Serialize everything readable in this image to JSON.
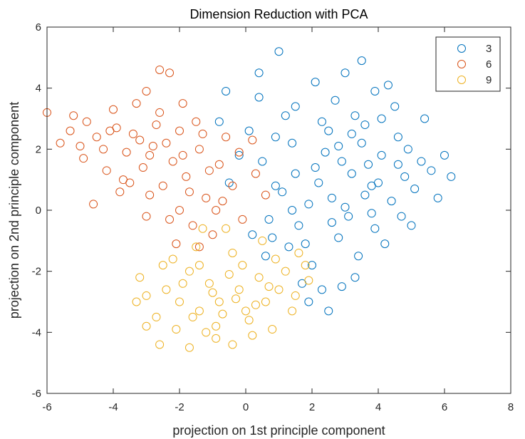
{
  "chart_data": {
    "type": "scatter",
    "title": "Dimension Reduction with PCA",
    "xlabel": "projection on 1st principle component",
    "ylabel": "projection on 2nd principle component",
    "xlim": [
      -6,
      8
    ],
    "ylim": [
      -6,
      6
    ],
    "xticks": [
      -6,
      -4,
      -2,
      0,
      2,
      4,
      6,
      8
    ],
    "yticks": [
      -6,
      -4,
      -2,
      0,
      2,
      4,
      6
    ],
    "grid": false,
    "legend_position": "top-right",
    "marker": "open-circle",
    "series": [
      {
        "name": "3",
        "color": "#0072BD",
        "points": [
          [
            3.2,
            1.2
          ],
          [
            3.8,
            0.8
          ],
          [
            2.6,
            0.4
          ],
          [
            4.1,
            1.8
          ],
          [
            3.5,
            2.2
          ],
          [
            2.9,
            1.6
          ],
          [
            4.4,
            0.3
          ],
          [
            3.1,
            -0.2
          ],
          [
            2.2,
            0.9
          ],
          [
            4.8,
            1.1
          ],
          [
            3.6,
            2.8
          ],
          [
            2.4,
            1.9
          ],
          [
            3.9,
            -0.6
          ],
          [
            4.6,
            2.4
          ],
          [
            2.8,
            -0.9
          ],
          [
            1.9,
            0.2
          ],
          [
            3.3,
            3.1
          ],
          [
            5.1,
            0.7
          ],
          [
            4.2,
            -1.1
          ],
          [
            2.1,
            1.4
          ],
          [
            1.6,
            -0.5
          ],
          [
            3.0,
            0.1
          ],
          [
            4.9,
            2.0
          ],
          [
            3.7,
            1.5
          ],
          [
            2.5,
            2.6
          ],
          [
            5.3,
            1.6
          ],
          [
            1.3,
            -1.2
          ],
          [
            2.0,
            -1.8
          ],
          [
            3.4,
            -1.5
          ],
          [
            4.5,
            3.4
          ],
          [
            2.7,
            3.6
          ],
          [
            1.1,
            0.6
          ],
          [
            0.8,
            -0.9
          ],
          [
            1.5,
            1.2
          ],
          [
            3.9,
            3.9
          ],
          [
            4.3,
            4.1
          ],
          [
            5.6,
            1.3
          ],
          [
            6.0,
            1.8
          ],
          [
            6.2,
            1.1
          ],
          [
            5.8,
            0.4
          ],
          [
            1.7,
            -2.4
          ],
          [
            2.3,
            -2.6
          ],
          [
            2.5,
            -3.3
          ],
          [
            1.9,
            -3.0
          ],
          [
            0.6,
            -1.5
          ],
          [
            0.2,
            -0.8
          ],
          [
            0.5,
            1.6
          ],
          [
            0.9,
            2.4
          ],
          [
            -0.6,
            3.9
          ],
          [
            0.4,
            3.7
          ],
          [
            1.2,
            3.1
          ],
          [
            2.1,
            4.2
          ],
          [
            3.0,
            4.5
          ],
          [
            3.5,
            4.9
          ],
          [
            1.0,
            5.2
          ],
          [
            0.4,
            4.5
          ],
          [
            -0.8,
            2.9
          ],
          [
            -0.2,
            1.8
          ],
          [
            -0.5,
            0.9
          ],
          [
            0.1,
            2.6
          ],
          [
            1.4,
            2.2
          ],
          [
            2.8,
            2.1
          ],
          [
            3.6,
            0.5
          ],
          [
            4.0,
            0.9
          ],
          [
            4.7,
            -0.2
          ],
          [
            5.0,
            -0.5
          ],
          [
            3.3,
            -2.2
          ],
          [
            2.9,
            -2.5
          ],
          [
            1.8,
            -1.1
          ],
          [
            0.7,
            -0.3
          ],
          [
            5.4,
            3.0
          ],
          [
            4.1,
            3.0
          ],
          [
            3.2,
            2.5
          ],
          [
            2.3,
            2.9
          ],
          [
            1.5,
            3.4
          ],
          [
            4.6,
            1.5
          ],
          [
            3.8,
            -0.1
          ],
          [
            2.6,
            -0.4
          ],
          [
            1.4,
            0.0
          ],
          [
            0.9,
            0.8
          ]
        ]
      },
      {
        "name": "6",
        "color": "#D95319",
        "points": [
          [
            -2.8,
            2.1
          ],
          [
            -2.2,
            1.6
          ],
          [
            -3.4,
            2.5
          ],
          [
            -1.8,
            1.1
          ],
          [
            -2.5,
            0.8
          ],
          [
            -3.9,
            2.7
          ],
          [
            -4.5,
            2.4
          ],
          [
            -3.1,
            1.4
          ],
          [
            -1.4,
            2.0
          ],
          [
            -2.0,
            2.6
          ],
          [
            -3.6,
            1.9
          ],
          [
            -4.8,
            2.9
          ],
          [
            -5.3,
            2.6
          ],
          [
            -4.2,
            1.3
          ],
          [
            -2.9,
            0.5
          ],
          [
            -1.2,
            0.4
          ],
          [
            -0.8,
            1.5
          ],
          [
            -1.5,
            2.9
          ],
          [
            -2.6,
            3.2
          ],
          [
            -3.3,
            3.5
          ],
          [
            -4.0,
            3.3
          ],
          [
            -5.0,
            2.1
          ],
          [
            -5.6,
            2.2
          ],
          [
            -6.0,
            3.2
          ],
          [
            -4.6,
            0.2
          ],
          [
            -3.8,
            0.6
          ],
          [
            -2.3,
            -0.3
          ],
          [
            -1.6,
            -0.5
          ],
          [
            -0.9,
            0.0
          ],
          [
            -0.4,
            0.8
          ],
          [
            -0.2,
            1.9
          ],
          [
            0.3,
            1.2
          ],
          [
            0.6,
            0.5
          ],
          [
            -0.1,
            -0.3
          ],
          [
            -1.0,
            -0.8
          ],
          [
            -2.1,
            -1.1
          ],
          [
            -2.6,
            4.6
          ],
          [
            -2.3,
            4.5
          ],
          [
            -3.0,
            3.9
          ],
          [
            -1.9,
            3.5
          ],
          [
            -3.7,
            1.0
          ],
          [
            -2.7,
            2.8
          ],
          [
            -1.9,
            1.8
          ],
          [
            -1.1,
            1.3
          ],
          [
            -0.6,
            2.4
          ],
          [
            -3.2,
            2.3
          ],
          [
            -4.3,
            2.0
          ],
          [
            -2.4,
            2.2
          ],
          [
            -1.7,
            0.6
          ],
          [
            -2.9,
            1.8
          ],
          [
            -3.5,
            0.9
          ],
          [
            -4.1,
            2.6
          ],
          [
            -1.3,
            2.5
          ],
          [
            -0.7,
            0.3
          ],
          [
            0.2,
            2.3
          ],
          [
            -2.0,
            0.0
          ],
          [
            -3.0,
            -0.2
          ],
          [
            -1.4,
            -1.2
          ],
          [
            -4.9,
            1.7
          ],
          [
            -5.2,
            3.1
          ]
        ]
      },
      {
        "name": "9",
        "color": "#EDB120",
        "points": [
          [
            -0.8,
            -3.0
          ],
          [
            -0.2,
            -2.6
          ],
          [
            -1.4,
            -3.3
          ],
          [
            0.3,
            -3.1
          ],
          [
            -0.5,
            -2.1
          ],
          [
            -1.1,
            -2.4
          ],
          [
            0.7,
            -2.5
          ],
          [
            -2.0,
            -3.0
          ],
          [
            -0.9,
            -3.8
          ],
          [
            0.1,
            -3.6
          ],
          [
            -1.7,
            -2.0
          ],
          [
            -2.4,
            -2.6
          ],
          [
            -2.7,
            -3.5
          ],
          [
            1.2,
            -2.0
          ],
          [
            1.5,
            -2.8
          ],
          [
            0.9,
            -1.6
          ],
          [
            -0.4,
            -1.4
          ],
          [
            -1.5,
            -1.2
          ],
          [
            -2.2,
            -1.6
          ],
          [
            -3.0,
            -2.8
          ],
          [
            -3.2,
            -2.2
          ],
          [
            -3.0,
            -3.8
          ],
          [
            -2.6,
            -4.4
          ],
          [
            -1.7,
            -4.5
          ],
          [
            -0.9,
            -4.2
          ],
          [
            0.2,
            -4.1
          ],
          [
            0.8,
            -3.9
          ],
          [
            1.4,
            -3.3
          ],
          [
            1.9,
            -2.3
          ],
          [
            1.6,
            -1.4
          ],
          [
            0.5,
            -1.0
          ],
          [
            -0.6,
            -0.6
          ],
          [
            -1.3,
            -0.6
          ],
          [
            -0.3,
            -2.9
          ],
          [
            -1.0,
            -2.7
          ],
          [
            0.0,
            -3.3
          ],
          [
            -1.6,
            -3.5
          ],
          [
            -0.7,
            -3.4
          ],
          [
            0.6,
            -3.0
          ],
          [
            -1.9,
            -2.4
          ],
          [
            -2.1,
            -3.9
          ],
          [
            -1.2,
            -4.0
          ],
          [
            0.4,
            -2.2
          ],
          [
            1.0,
            -2.6
          ],
          [
            -0.1,
            -1.8
          ],
          [
            -2.5,
            -1.8
          ],
          [
            -3.3,
            -3.0
          ],
          [
            1.8,
            -1.8
          ],
          [
            -0.4,
            -4.4
          ],
          [
            -1.4,
            -1.8
          ]
        ]
      }
    ]
  }
}
